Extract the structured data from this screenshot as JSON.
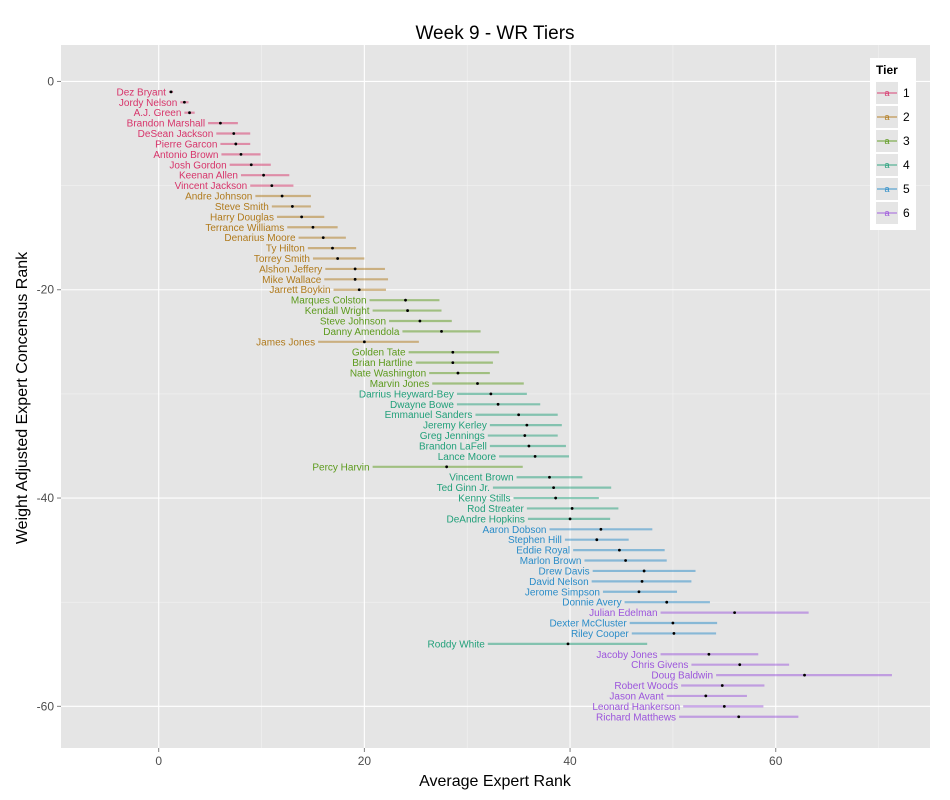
{
  "chart_data": {
    "type": "scatter",
    "title": "Week 9 - WR Tiers",
    "xlabel": "Average Expert Rank",
    "ylabel": "Weight Adjusted Expert Concensus Rank",
    "xlim": [
      -9.5,
      75
    ],
    "ylim": [
      -64,
      3.5
    ],
    "x_ticks": [
      0,
      20,
      40,
      60
    ],
    "y_ticks": [
      0,
      -20,
      -40,
      -60
    ],
    "grid": true,
    "legend": {
      "title": "Tier",
      "position": "top-right",
      "key_glyph": "a",
      "entries": [
        {
          "label": "1",
          "color": "#D7346A"
        },
        {
          "label": "2",
          "color": "#B07A1C"
        },
        {
          "label": "3",
          "color": "#5C9A1C"
        },
        {
          "label": "4",
          "color": "#22A07A"
        },
        {
          "label": "5",
          "color": "#2A8CC8"
        },
        {
          "label": "6",
          "color": "#9C55DC"
        }
      ]
    },
    "point_color": "#000000",
    "players": [
      {
        "name": "Dez Bryant",
        "rank": 1,
        "avg": 1.2,
        "lo": 1.0,
        "hi": 1.4,
        "tier": 1
      },
      {
        "name": "Jordy Nelson",
        "rank": 2,
        "avg": 2.5,
        "lo": 2.1,
        "hi": 2.9,
        "tier": 1
      },
      {
        "name": "A.J. Green",
        "rank": 3,
        "avg": 3.0,
        "lo": 2.5,
        "hi": 3.5,
        "tier": 1
      },
      {
        "name": "Brandon Marshall",
        "rank": 4,
        "avg": 6.0,
        "lo": 4.8,
        "hi": 7.7,
        "tier": 1
      },
      {
        "name": "DeSean Jackson",
        "rank": 5,
        "avg": 7.3,
        "lo": 5.6,
        "hi": 8.9,
        "tier": 1
      },
      {
        "name": "Pierre Garcon",
        "rank": 6,
        "avg": 7.5,
        "lo": 6.0,
        "hi": 8.9,
        "tier": 1
      },
      {
        "name": "Antonio Brown",
        "rank": 7,
        "avg": 8.0,
        "lo": 6.1,
        "hi": 9.9,
        "tier": 1
      },
      {
        "name": "Josh Gordon",
        "rank": 8,
        "avg": 9.0,
        "lo": 6.9,
        "hi": 10.9,
        "tier": 1
      },
      {
        "name": "Keenan Allen",
        "rank": 9,
        "avg": 10.2,
        "lo": 8.0,
        "hi": 12.7,
        "tier": 1
      },
      {
        "name": "Vincent Jackson",
        "rank": 10,
        "avg": 11.0,
        "lo": 8.9,
        "hi": 13.1,
        "tier": 1
      },
      {
        "name": "Andre Johnson",
        "rank": 11,
        "avg": 12.0,
        "lo": 9.4,
        "hi": 14.8,
        "tier": 2
      },
      {
        "name": "Steve Smith",
        "rank": 12,
        "avg": 13.0,
        "lo": 11.0,
        "hi": 14.8,
        "tier": 2
      },
      {
        "name": "Harry Douglas",
        "rank": 13,
        "avg": 13.9,
        "lo": 11.5,
        "hi": 16.1,
        "tier": 2
      },
      {
        "name": "Terrance Williams",
        "rank": 14,
        "avg": 15.0,
        "lo": 12.5,
        "hi": 17.4,
        "tier": 2
      },
      {
        "name": "Denarius Moore",
        "rank": 15,
        "avg": 16.0,
        "lo": 13.6,
        "hi": 18.2,
        "tier": 2
      },
      {
        "name": "Ty Hilton",
        "rank": 16,
        "avg": 16.9,
        "lo": 14.5,
        "hi": 19.2,
        "tier": 2
      },
      {
        "name": "Torrey Smith",
        "rank": 17,
        "avg": 17.4,
        "lo": 15.0,
        "hi": 20.0,
        "tier": 2
      },
      {
        "name": "Alshon Jeffery",
        "rank": 18,
        "avg": 19.1,
        "lo": 16.2,
        "hi": 22.0,
        "tier": 2
      },
      {
        "name": "Mike Wallace",
        "rank": 19,
        "avg": 19.1,
        "lo": 16.1,
        "hi": 22.3,
        "tier": 2
      },
      {
        "name": "Jarrett Boykin",
        "rank": 20,
        "avg": 19.5,
        "lo": 17.0,
        "hi": 22.1,
        "tier": 2
      },
      {
        "name": "Marques Colston",
        "rank": 21,
        "avg": 24.0,
        "lo": 20.5,
        "hi": 27.3,
        "tier": 3
      },
      {
        "name": "Kendall Wright",
        "rank": 22,
        "avg": 24.2,
        "lo": 20.8,
        "hi": 27.5,
        "tier": 3
      },
      {
        "name": "Steve Johnson",
        "rank": 23,
        "avg": 25.4,
        "lo": 22.4,
        "hi": 28.5,
        "tier": 3
      },
      {
        "name": "Danny Amendola",
        "rank": 24,
        "avg": 27.5,
        "lo": 23.7,
        "hi": 31.3,
        "tier": 3
      },
      {
        "name": "James Jones",
        "rank": 25,
        "avg": 20.0,
        "lo": 15.5,
        "hi": 25.3,
        "tier": 2
      },
      {
        "name": "Golden Tate",
        "rank": 26,
        "avg": 28.6,
        "lo": 24.3,
        "hi": 33.1,
        "tier": 3
      },
      {
        "name": "Brian Hartline",
        "rank": 27,
        "avg": 28.6,
        "lo": 25.0,
        "hi": 32.5,
        "tier": 3
      },
      {
        "name": "Nate Washington",
        "rank": 28,
        "avg": 29.1,
        "lo": 26.3,
        "hi": 32.2,
        "tier": 3
      },
      {
        "name": "Marvin Jones",
        "rank": 29,
        "avg": 31.0,
        "lo": 26.6,
        "hi": 35.5,
        "tier": 3
      },
      {
        "name": "Darrius Heyward-Bey",
        "rank": 30,
        "avg": 32.3,
        "lo": 29.0,
        "hi": 35.8,
        "tier": 4
      },
      {
        "name": "Dwayne Bowe",
        "rank": 31,
        "avg": 33.0,
        "lo": 29.0,
        "hi": 37.1,
        "tier": 4
      },
      {
        "name": "Emmanuel Sanders",
        "rank": 32,
        "avg": 35.0,
        "lo": 30.8,
        "hi": 38.8,
        "tier": 4
      },
      {
        "name": "Jeremy Kerley",
        "rank": 33,
        "avg": 35.8,
        "lo": 32.2,
        "hi": 39.2,
        "tier": 4
      },
      {
        "name": "Greg Jennings",
        "rank": 34,
        "avg": 35.6,
        "lo": 32.0,
        "hi": 38.8,
        "tier": 4
      },
      {
        "name": "Brandon LaFell",
        "rank": 35,
        "avg": 36.0,
        "lo": 32.2,
        "hi": 39.6,
        "tier": 4
      },
      {
        "name": "Lance Moore",
        "rank": 36,
        "avg": 36.6,
        "lo": 33.1,
        "hi": 39.9,
        "tier": 4
      },
      {
        "name": "Percy Harvin",
        "rank": 37,
        "avg": 28.0,
        "lo": 20.8,
        "hi": 35.4,
        "tier": 3
      },
      {
        "name": "Vincent Brown",
        "rank": 38,
        "avg": 38.0,
        "lo": 34.8,
        "hi": 41.2,
        "tier": 4
      },
      {
        "name": "Ted Ginn Jr.",
        "rank": 39,
        "avg": 38.4,
        "lo": 32.5,
        "hi": 44.0,
        "tier": 4
      },
      {
        "name": "Kenny Stills",
        "rank": 40,
        "avg": 38.6,
        "lo": 34.5,
        "hi": 42.8,
        "tier": 4
      },
      {
        "name": "Rod Streater",
        "rank": 41,
        "avg": 40.2,
        "lo": 35.8,
        "hi": 44.7,
        "tier": 4
      },
      {
        "name": "DeAndre Hopkins",
        "rank": 42,
        "avg": 40.0,
        "lo": 35.9,
        "hi": 43.9,
        "tier": 4
      },
      {
        "name": "Aaron Dobson",
        "rank": 43,
        "avg": 43.0,
        "lo": 38.0,
        "hi": 48.0,
        "tier": 5
      },
      {
        "name": "Stephen Hill",
        "rank": 44,
        "avg": 42.6,
        "lo": 39.5,
        "hi": 45.7,
        "tier": 5
      },
      {
        "name": "Eddie Royal",
        "rank": 45,
        "avg": 44.8,
        "lo": 40.3,
        "hi": 49.2,
        "tier": 5
      },
      {
        "name": "Marlon Brown",
        "rank": 46,
        "avg": 45.4,
        "lo": 41.4,
        "hi": 49.4,
        "tier": 5
      },
      {
        "name": "Drew Davis",
        "rank": 47,
        "avg": 47.2,
        "lo": 42.2,
        "hi": 52.2,
        "tier": 5
      },
      {
        "name": "David Nelson",
        "rank": 48,
        "avg": 47.0,
        "lo": 42.1,
        "hi": 51.8,
        "tier": 5
      },
      {
        "name": "Jerome Simpson",
        "rank": 49,
        "avg": 46.7,
        "lo": 43.2,
        "hi": 50.4,
        "tier": 5
      },
      {
        "name": "Donnie Avery",
        "rank": 50,
        "avg": 49.4,
        "lo": 45.3,
        "hi": 53.6,
        "tier": 5
      },
      {
        "name": "Julian Edelman",
        "rank": 51,
        "avg": 56.0,
        "lo": 48.8,
        "hi": 63.2,
        "tier": 6
      },
      {
        "name": "Dexter McCluster",
        "rank": 52,
        "avg": 50.0,
        "lo": 45.8,
        "hi": 54.3,
        "tier": 5
      },
      {
        "name": "Riley Cooper",
        "rank": 53,
        "avg": 50.1,
        "lo": 46.0,
        "hi": 54.2,
        "tier": 5
      },
      {
        "name": "Roddy White",
        "rank": 54,
        "avg": 39.8,
        "lo": 32.0,
        "hi": 47.5,
        "tier": 4
      },
      {
        "name": "Jacoby Jones",
        "rank": 55,
        "avg": 53.5,
        "lo": 48.8,
        "hi": 58.3,
        "tier": 6
      },
      {
        "name": "Chris Givens",
        "rank": 56,
        "avg": 56.5,
        "lo": 51.8,
        "hi": 61.3,
        "tier": 6
      },
      {
        "name": "Doug Baldwin",
        "rank": 57,
        "avg": 62.8,
        "lo": 54.2,
        "hi": 71.3,
        "tier": 6
      },
      {
        "name": "Robert Woods",
        "rank": 58,
        "avg": 54.8,
        "lo": 50.8,
        "hi": 58.9,
        "tier": 6
      },
      {
        "name": "Jason Avant",
        "rank": 59,
        "avg": 53.2,
        "lo": 49.4,
        "hi": 57.2,
        "tier": 6
      },
      {
        "name": "Leonard Hankerson",
        "rank": 60,
        "avg": 55.0,
        "lo": 51.0,
        "hi": 58.8,
        "tier": 6
      },
      {
        "name": "Richard Matthews",
        "rank": 61,
        "avg": 56.4,
        "lo": 50.6,
        "hi": 62.2,
        "tier": 6
      }
    ]
  }
}
